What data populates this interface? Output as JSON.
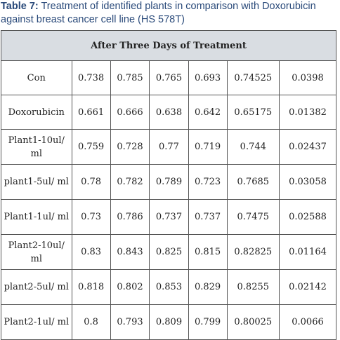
{
  "caption": {
    "label": "Table 7:",
    "text": " Treatment of identified plants in comparison with Doxorubicin against breast cancer cell line (HS 578T)"
  },
  "table": {
    "header": "After Three Days of Treatment",
    "rows": [
      {
        "label": "Con",
        "values": [
          "0.738",
          "0.785",
          "0.765",
          "0.693",
          "0.74525",
          "0.0398"
        ]
      },
      {
        "label": "Doxorubicin",
        "values": [
          "0.661",
          "0.666",
          "0.638",
          "0.642",
          "0.65175",
          "0.01382"
        ]
      },
      {
        "label": "Plant1-10ul/ ml",
        "values": [
          "0.759",
          "0.728",
          "0.77",
          "0.719",
          "0.744",
          "0.02437"
        ]
      },
      {
        "label": "plant1-5ul/ ml",
        "values": [
          "0.78",
          "0.782",
          "0.789",
          "0.723",
          "0.7685",
          "0.03058"
        ]
      },
      {
        "label": "Plant1-1ul/ ml",
        "values": [
          "0.73",
          "0.786",
          "0.737",
          "0.737",
          "0.7475",
          "0.02588"
        ]
      },
      {
        "label": "Plant2-10ul/ ml",
        "values": [
          "0.83",
          "0.843",
          "0.825",
          "0.815",
          "0.82825",
          "0.01164"
        ]
      },
      {
        "label": "plant2-5ul/ ml",
        "values": [
          "0.818",
          "0.802",
          "0.853",
          "0.829",
          "0.8255",
          "0.02142"
        ]
      },
      {
        "label": "Plant2-1ul/ ml",
        "values": [
          "0.8",
          "0.793",
          "0.809",
          "0.799",
          "0.80025",
          "0.0066"
        ]
      }
    ]
  }
}
